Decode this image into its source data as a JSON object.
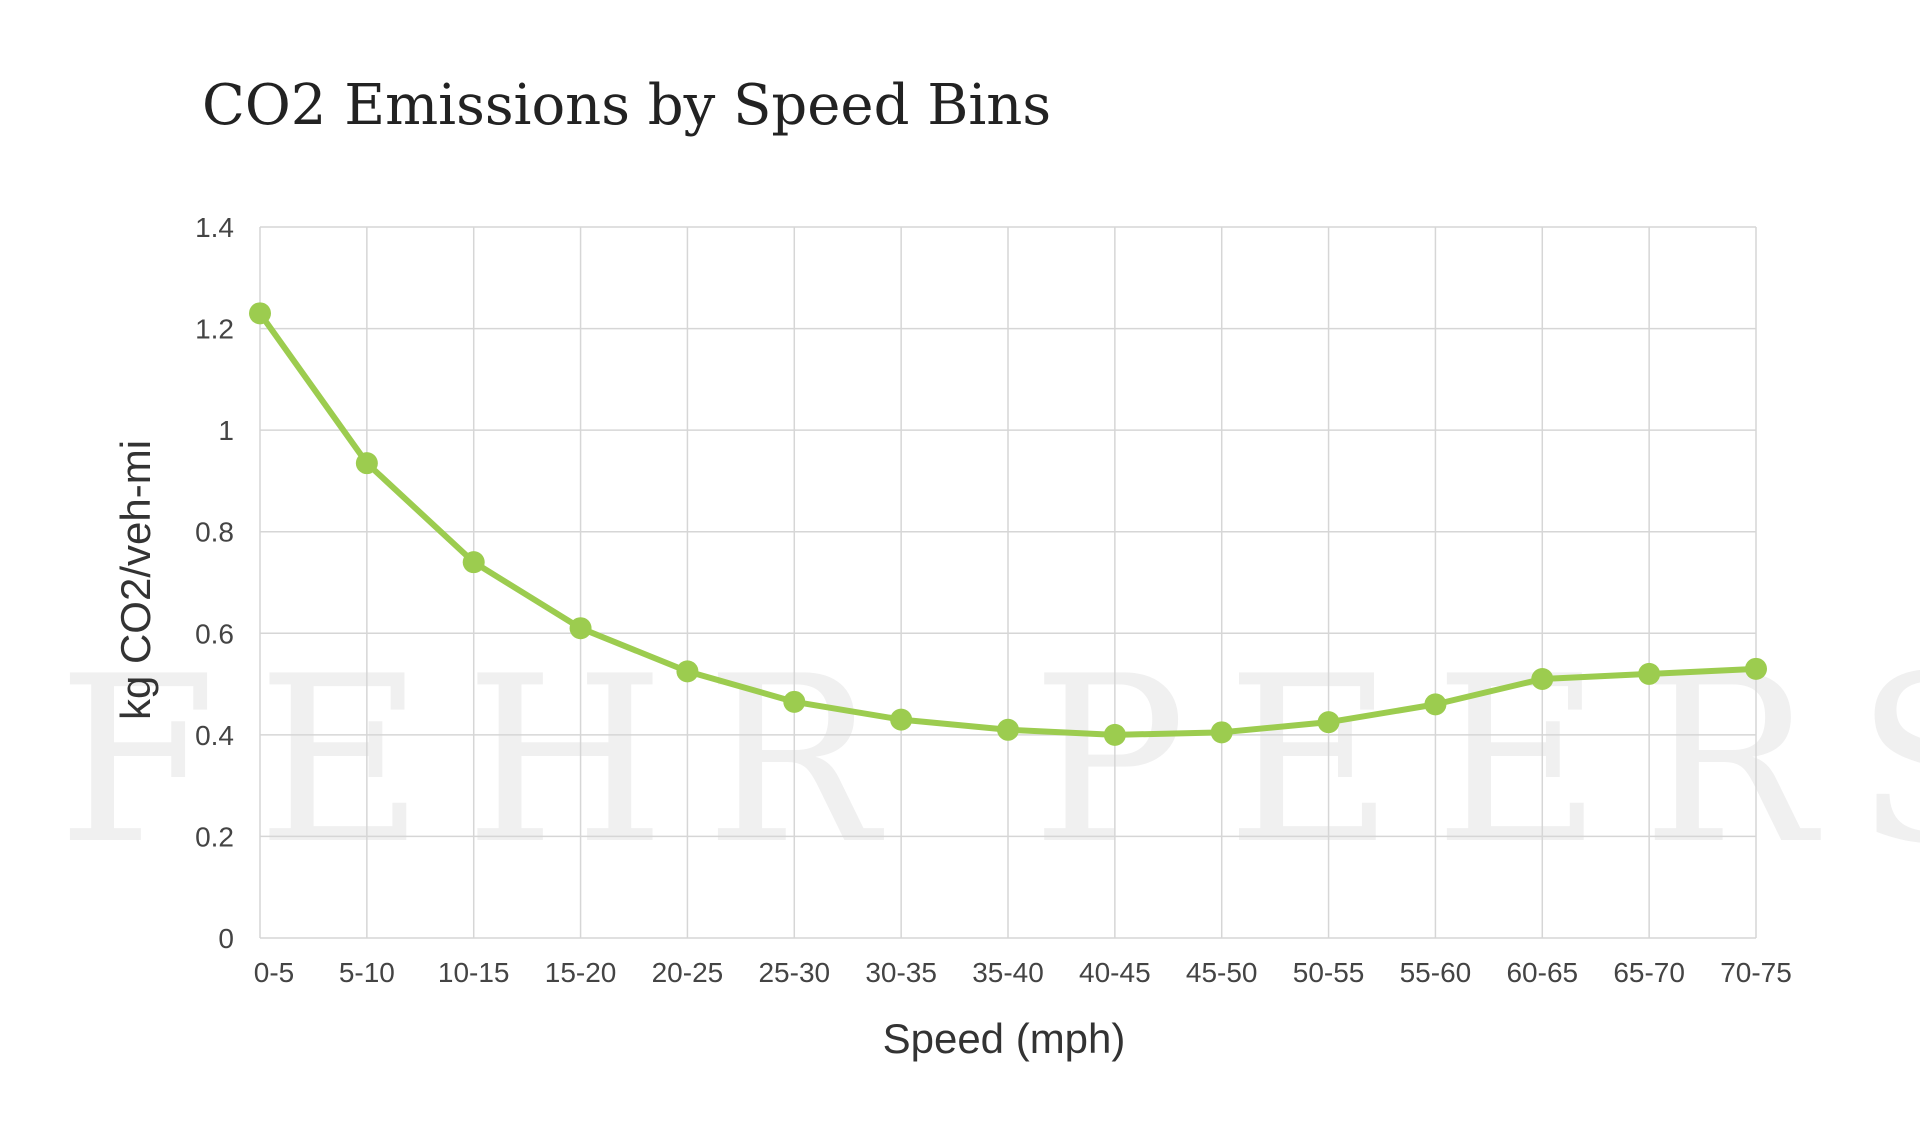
{
  "chart_data": {
    "type": "line",
    "title": "CO2 Emissions by Speed Bins",
    "xlabel": "Speed (mph)",
    "ylabel": "kg CO2/veh-mi",
    "ylim": [
      0,
      1.4
    ],
    "yticks": [
      "0",
      "0.2",
      "0.4",
      "0.6",
      "0.8",
      "1",
      "1.2",
      "1.4"
    ],
    "categories": [
      "0-5",
      "5-10",
      "10-15",
      "15-20",
      "20-25",
      "25-30",
      "30-35",
      "35-40",
      "40-45",
      "45-50",
      "50-55",
      "55-60",
      "60-65",
      "65-70",
      "70-75"
    ],
    "values": [
      1.23,
      0.935,
      0.74,
      0.61,
      0.525,
      0.465,
      0.43,
      0.41,
      0.4,
      0.405,
      0.425,
      0.46,
      0.51,
      0.52,
      0.53
    ],
    "grid": true,
    "legend": "none",
    "line_color": "#9ccc4f",
    "watermark": "FEHR PEERS"
  }
}
